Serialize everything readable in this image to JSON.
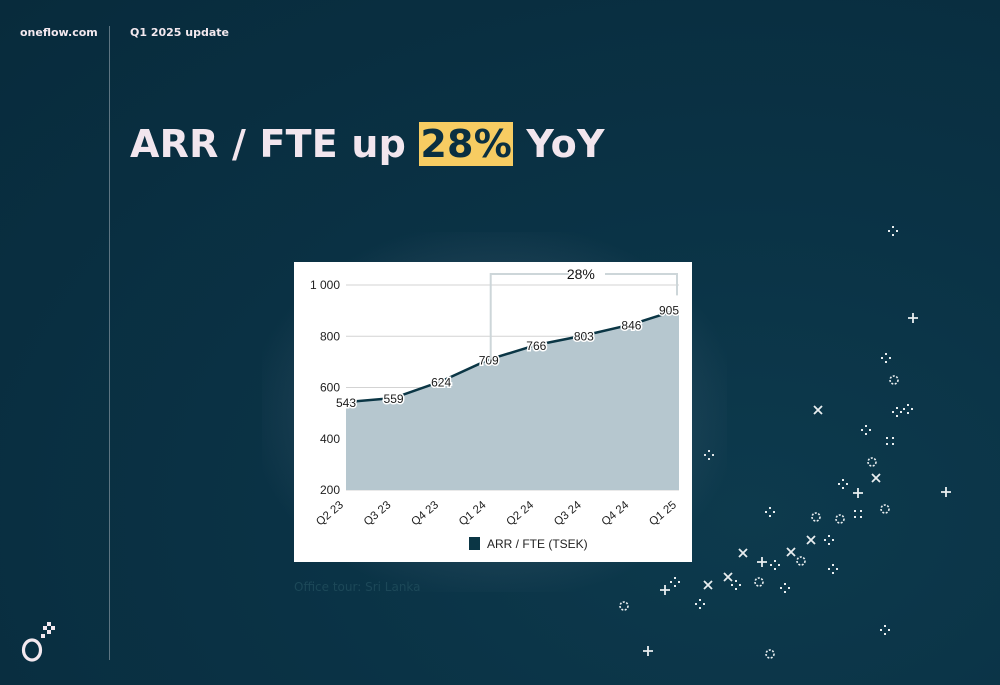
{
  "header": {
    "brand": "oneflow.com",
    "subtitle": "Q1 2025 update"
  },
  "headline": {
    "before": "ARR / FTE up ",
    "highlight": "28%",
    "after": " YoY"
  },
  "caption": "Office tour: Sri Lanka",
  "colors": {
    "background": "#0a3245",
    "highlight": "#f7cc62",
    "area_fill": "#b6c7cf",
    "line": "#0b3645"
  },
  "icons": [
    "oneflow-logo-icon",
    "sparkle-icon"
  ],
  "chart_data": {
    "type": "area",
    "categories": [
      "Q2 23",
      "Q3 23",
      "Q4 23",
      "Q1 24",
      "Q2 24",
      "Q3 24",
      "Q4 24",
      "Q1 25"
    ],
    "series": [
      {
        "name": "ARR / FTE (TSEK)",
        "values": [
          543,
          559,
          624,
          709,
          766,
          803,
          846,
          905
        ]
      }
    ],
    "ytick_labels": [
      "200",
      "400",
      "600",
      "800",
      "1 000"
    ],
    "yticks": [
      200,
      400,
      600,
      800,
      1000
    ],
    "ylim": [
      200,
      1000
    ],
    "grid": true,
    "legend": "bottom",
    "annotation": {
      "label": "28%",
      "from": "Q1 24",
      "to": "Q1 25"
    }
  }
}
